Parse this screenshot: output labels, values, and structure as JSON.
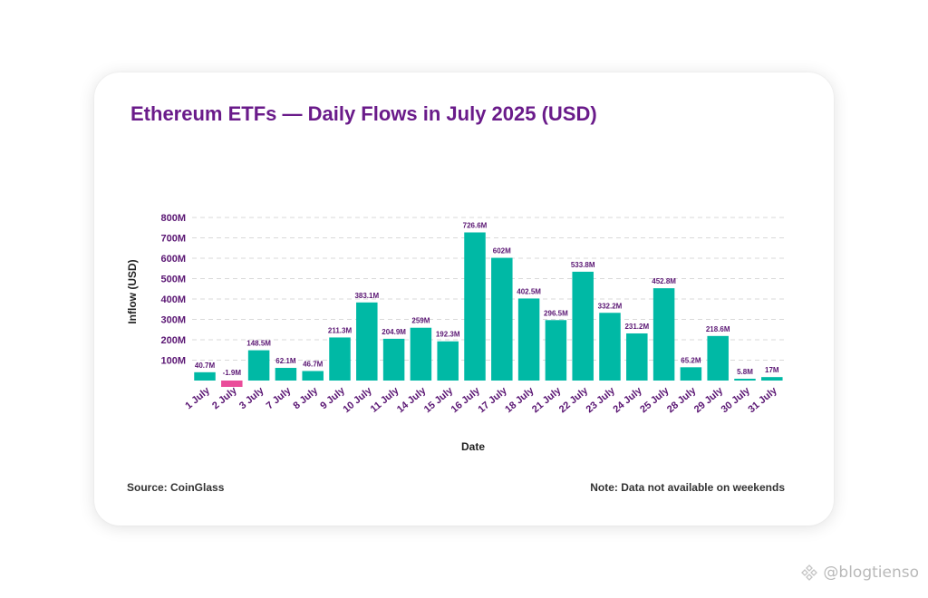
{
  "footer": {
    "source": "Source: CoinGlass",
    "note": "Note: Data not available on weekends"
  },
  "watermark": {
    "text": "@blogtienso",
    "icon": "binance-diamond-icon"
  },
  "colors": {
    "positive_bar": "#00b9a5",
    "negative_bar": "#ea4c9a",
    "title": "#6a1b8a",
    "labels": "#5a1673"
  },
  "chart_data": {
    "type": "bar",
    "title": "Ethereum ETFs — Daily Flows in July 2025 (USD)",
    "xlabel": "Date",
    "ylabel": "Inflow (USD)",
    "ylim": [
      0,
      800
    ],
    "yunit": "M",
    "yticks": [
      100,
      200,
      300,
      400,
      500,
      600,
      700,
      800
    ],
    "ytick_labels": [
      "100M",
      "200M",
      "300M",
      "400M",
      "500M",
      "600M",
      "700M",
      "800M"
    ],
    "grid": true,
    "categories": [
      "1 July",
      "2 July",
      "3 July",
      "7 July",
      "8 July",
      "9 July",
      "10 July",
      "11 July",
      "14 July",
      "15 July",
      "16 July",
      "17 July",
      "18 July",
      "21 July",
      "22 July",
      "23 July",
      "24 July",
      "25 July",
      "28 July",
      "29 July",
      "30 July",
      "31 July"
    ],
    "values": [
      40.7,
      -1.9,
      148.5,
      62.1,
      46.7,
      211.3,
      383.1,
      204.9,
      259,
      192.3,
      726.6,
      602,
      402.5,
      296.5,
      533.8,
      332.2,
      231.2,
      452.8,
      65.2,
      218.6,
      5.8,
      17
    ],
    "data_labels": [
      "40.7M",
      "-1.9M",
      "148.5M",
      "62.1M",
      "46.7M",
      "211.3M",
      "383.1M",
      "204.9M",
      "259M",
      "192.3M",
      "726.6M",
      "602M",
      "402.5M",
      "296.5M",
      "533.8M",
      "332.2M",
      "231.2M",
      "452.8M",
      "65.2M",
      "218.6M",
      "5.8M",
      "17M"
    ]
  }
}
